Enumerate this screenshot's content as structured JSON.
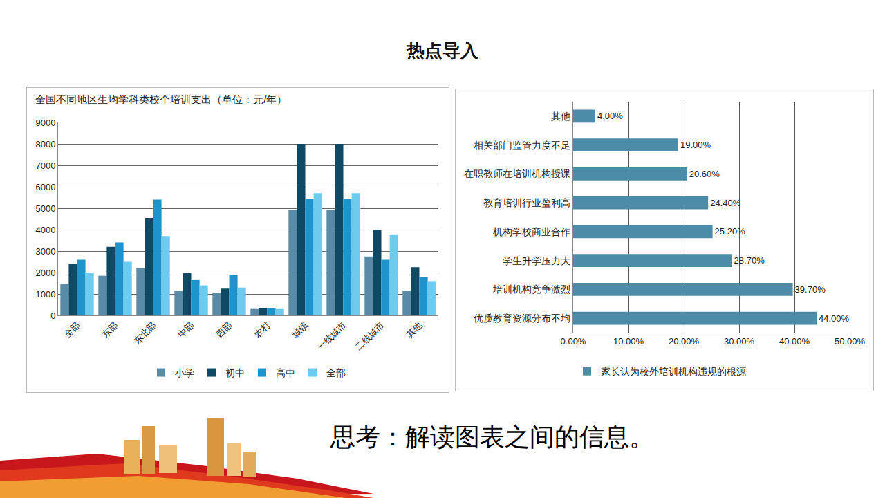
{
  "page": {
    "heading": "热点导入",
    "prompt": "思考：解读图表之间的信息。"
  },
  "chart_data": [
    {
      "type": "bar",
      "title": "全国不同地区生均学科类校个培训支出（单位：元/年）",
      "categories": [
        "全部",
        "东部",
        "东北部",
        "中部",
        "西部",
        "农村",
        "城镇",
        "一线城市",
        "二线城市",
        "其他"
      ],
      "series": [
        {
          "name": "小学",
          "color": "#5a8ba6",
          "values": [
            1450,
            1850,
            2200,
            1150,
            1050,
            300,
            4900,
            4900,
            2750,
            1150
          ]
        },
        {
          "name": "初中",
          "color": "#0e4a63",
          "values": [
            2400,
            3200,
            4550,
            2000,
            1250,
            350,
            8000,
            8000,
            4000,
            2250
          ]
        },
        {
          "name": "高中",
          "color": "#1f93cc",
          "values": [
            2600,
            3400,
            5400,
            1650,
            1900,
            350,
            5450,
            5450,
            2600,
            1800
          ]
        },
        {
          "name": "全部",
          "color": "#6ccbee",
          "values": [
            2000,
            2500,
            3700,
            1400,
            1300,
            300,
            5700,
            5700,
            3750,
            1600
          ]
        }
      ],
      "ylim": [
        0,
        9000
      ],
      "yticks": [
        0,
        1000,
        2000,
        3000,
        4000,
        5000,
        6000,
        7000,
        8000,
        9000
      ],
      "grid": true,
      "legend": "bottom"
    },
    {
      "type": "bar",
      "orientation": "horizontal",
      "categories": [
        "其他",
        "相关部门监管力度不足",
        "在职教师在培训机构授课",
        "教育培训行业盈利高",
        "机构学校商业合作",
        "学生升学压力大",
        "培训机构竞争激烈",
        "优质教育资源分布不均"
      ],
      "series": [
        {
          "name": "家长认为校外培训机构违规的根源",
          "color": "#4d8ca8",
          "values": [
            4,
            19,
            20.6,
            24.4,
            25.2,
            28.7,
            39.7,
            44
          ],
          "value_labels": [
            "4.00%",
            "19.00%",
            "20.60%",
            "24.40%",
            "25.20%",
            "28.70%",
            "39.70%",
            "44.00%"
          ]
        }
      ],
      "xlim": [
        0,
        50
      ],
      "xticks": [
        {
          "value": 0,
          "label": "0.00%"
        },
        {
          "value": 10,
          "label": "10.00%"
        },
        {
          "value": 20,
          "label": "20.00%"
        },
        {
          "value": 30,
          "label": "30.00%"
        },
        {
          "value": 40,
          "label": "40.00%"
        },
        {
          "value": 50,
          "label": "50.00%"
        }
      ],
      "grid": true,
      "data_labels": true,
      "legend": "bottom"
    }
  ]
}
